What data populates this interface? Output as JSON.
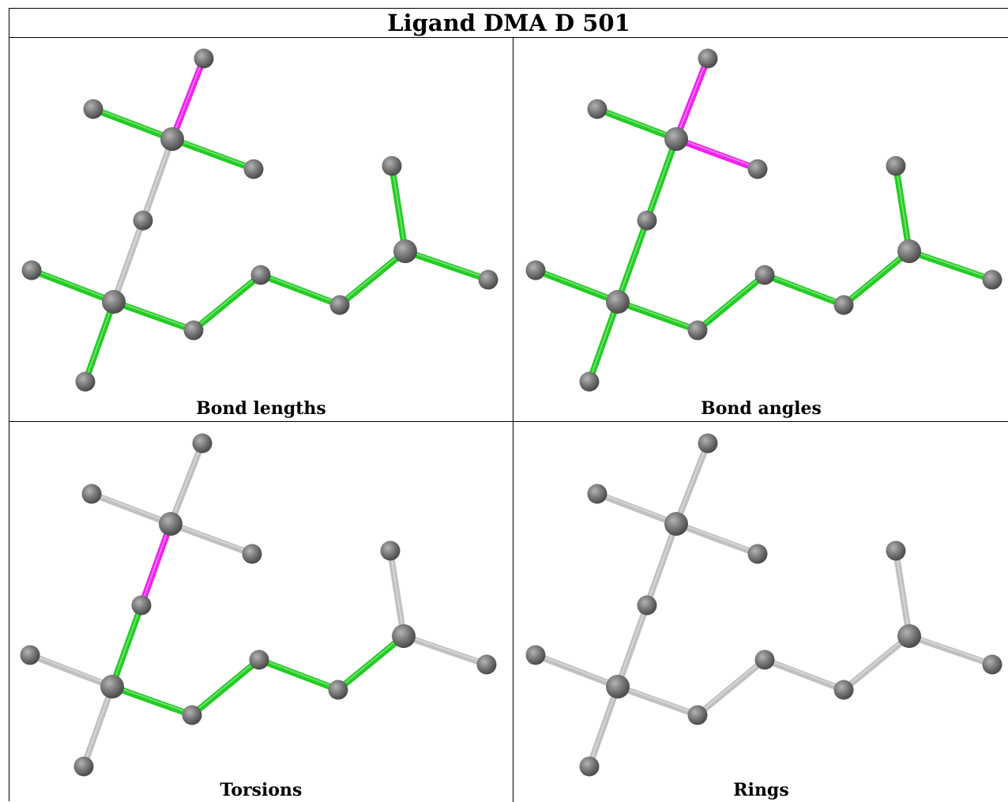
{
  "title": "Ligand DMA D 501",
  "panels": [
    {
      "caption": "Bond lengths",
      "bonds": [
        "magenta",
        "green",
        "green",
        "gray",
        "gray",
        "green",
        "green",
        "green",
        "green",
        "green",
        "green",
        "green",
        "green"
      ]
    },
    {
      "caption": "Bond angles",
      "bonds": [
        "magenta",
        "green",
        "magenta",
        "green",
        "green",
        "green",
        "green",
        "green",
        "green",
        "green",
        "green",
        "green",
        "green"
      ]
    },
    {
      "caption": "Torsions",
      "bonds": [
        "gray",
        "gray",
        "gray",
        "magenta",
        "green",
        "gray",
        "gray",
        "green",
        "green",
        "green",
        "green",
        "gray",
        "gray"
      ]
    },
    {
      "caption": "Rings",
      "bonds": [
        "gray",
        "gray",
        "gray",
        "gray",
        "gray",
        "gray",
        "gray",
        "gray",
        "gray",
        "gray",
        "gray",
        "gray",
        "gray"
      ]
    }
  ],
  "colors": {
    "green": "#22cc22",
    "magenta": "#ee22ee",
    "gray": "#c0c0c0",
    "atom": "#777777"
  }
}
